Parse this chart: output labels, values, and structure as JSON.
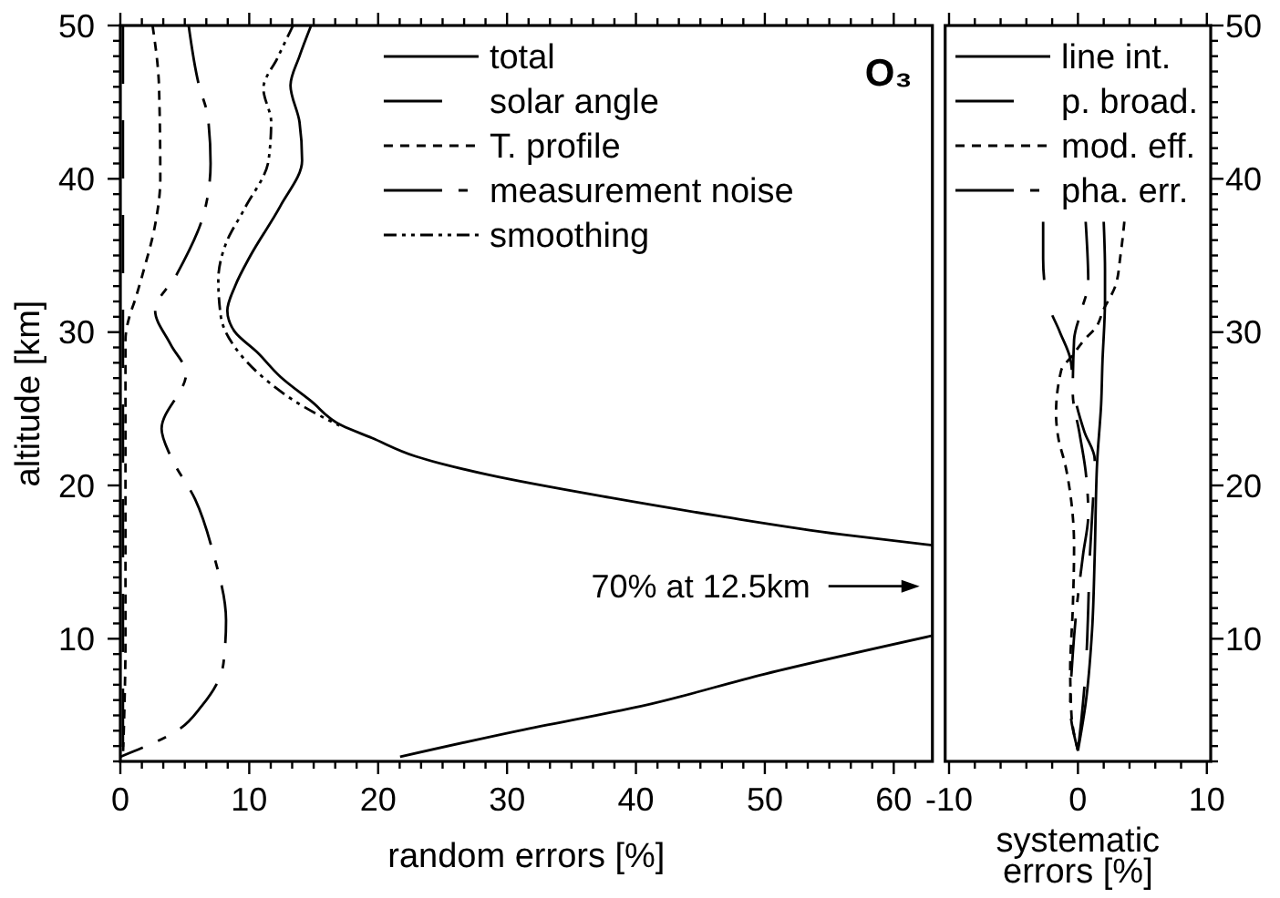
{
  "chart_data": [
    {
      "type": "line",
      "title": "O₃",
      "xlabel": "random errors [%]",
      "ylabel": "altitude [km]",
      "xlim": [
        0,
        63
      ],
      "xticks": [
        0,
        {
          "value": 1.67,
          "label": null
        },
        {
          "value": 3.33,
          "label": null
        },
        {
          "value": 5,
          "label": null
        },
        {
          "value": 6.67,
          "label": null
        },
        {
          "value": 8.33,
          "label": null
        },
        10,
        {
          "value": 11.67,
          "label": null
        },
        {
          "value": 13.33,
          "label": null
        },
        {
          "value": 15,
          "label": null
        },
        {
          "value": 16.67,
          "label": null
        },
        {
          "value": 18.33,
          "label": null
        },
        20,
        {
          "value": 21.67,
          "label": null
        },
        {
          "value": 23.33,
          "label": null
        },
        {
          "value": 25,
          "label": null
        },
        {
          "value": 26.67,
          "label": null
        },
        {
          "value": 28.33,
          "label": null
        },
        30,
        {
          "value": 31.67,
          "label": null
        },
        {
          "value": 33.33,
          "label": null
        },
        {
          "value": 35,
          "label": null
        },
        {
          "value": 36.67,
          "label": null
        },
        {
          "value": 38.33,
          "label": null
        },
        40,
        {
          "value": 41.67,
          "label": null
        },
        {
          "value": 43.33,
          "label": null
        },
        {
          "value": 45,
          "label": null
        },
        {
          "value": 46.67,
          "label": null
        },
        {
          "value": 48.33,
          "label": null
        },
        50,
        {
          "value": 51.67,
          "label": null
        },
        {
          "value": 53.33,
          "label": null
        },
        {
          "value": 55,
          "label": null
        },
        {
          "value": 56.67,
          "label": null
        },
        {
          "value": 58.33,
          "label": null
        },
        60,
        {
          "value": 61.67,
          "label": null
        }
      ],
      "ylim": [
        2,
        50
      ],
      "yticks": [
        {
          "value": 2,
          "label": null
        },
        {
          "value": 3,
          "label": null
        },
        {
          "value": 4,
          "label": null
        },
        {
          "value": 5,
          "label": null
        },
        {
          "value": 6,
          "label": null
        },
        {
          "value": 7,
          "label": null
        },
        {
          "value": 8,
          "label": null
        },
        {
          "value": 9,
          "label": null
        },
        10,
        {
          "value": 11,
          "label": null
        },
        {
          "value": 12,
          "label": null
        },
        {
          "value": 13,
          "label": null
        },
        {
          "value": 14,
          "label": null
        },
        {
          "value": 15,
          "label": null
        },
        {
          "value": 16,
          "label": null
        },
        {
          "value": 17,
          "label": null
        },
        {
          "value": 18,
          "label": null
        },
        {
          "value": 19,
          "label": null
        },
        20,
        {
          "value": 21,
          "label": null
        },
        {
          "value": 22,
          "label": null
        },
        {
          "value": 23,
          "label": null
        },
        {
          "value": 24,
          "label": null
        },
        {
          "value": 25,
          "label": null
        },
        {
          "value": 26,
          "label": null
        },
        {
          "value": 27,
          "label": null
        },
        {
          "value": 28,
          "label": null
        },
        {
          "value": 29,
          "label": null
        },
        30,
        {
          "value": 31,
          "label": null
        },
        {
          "value": 32,
          "label": null
        },
        {
          "value": 33,
          "label": null
        },
        {
          "value": 34,
          "label": null
        },
        {
          "value": 35,
          "label": null
        },
        {
          "value": 36,
          "label": null
        },
        {
          "value": 37,
          "label": null
        },
        {
          "value": 38,
          "label": null
        },
        {
          "value": 39,
          "label": null
        },
        40,
        {
          "value": 41,
          "label": null
        },
        {
          "value": 42,
          "label": null
        },
        {
          "value": 43,
          "label": null
        },
        {
          "value": 44,
          "label": null
        },
        {
          "value": 45,
          "label": null
        },
        {
          "value": 46,
          "label": null
        },
        {
          "value": 47,
          "label": null
        },
        {
          "value": 48,
          "label": null
        },
        {
          "value": 49,
          "label": null
        },
        50
      ],
      "legend": "top right",
      "annotations": [
        "70% at 12.5km"
      ],
      "series": [
        {
          "name": "total",
          "color": "#000000",
          "line_style": "solid",
          "x": [
            14.8,
            13.9,
            13.2,
            13.9,
            14.1,
            12.4,
            10.1,
            8.9,
            8.3,
            8.9,
            10.6,
            12.4,
            14.8,
            17.2,
            19.5,
            22.9,
            28.5,
            38,
            46.5,
            56,
            63,
            null,
            63,
            50,
            40.4,
            30.9,
            21.7
          ],
          "values": [
            50,
            48,
            46.1,
            43.7,
            41.2,
            38.2,
            35,
            33,
            31.4,
            30,
            28.7,
            27.1,
            25.5,
            23.9,
            23.1,
            21.9,
            20.7,
            19.2,
            18,
            16.8,
            16.1,
            null,
            10.2,
            7.7,
            5.6,
            4,
            2.3
          ]
        },
        {
          "name": "solar angle",
          "color": "#000000",
          "line_style": "longdash",
          "x": [
            0.2,
            0.2,
            0.2,
            0.2,
            0.2,
            0.2
          ],
          "values": [
            50,
            40,
            30,
            20,
            10,
            2.3
          ]
        },
        {
          "name": "T. profile",
          "color": "#000000",
          "line_style": "dashed",
          "x": [
            2.5,
            3,
            3.1,
            2.7,
            1.8,
            1.1,
            0.7,
            0.4,
            0.4,
            0.4,
            0.4,
            0.4,
            0.3,
            0.2
          ],
          "values": [
            50,
            46,
            40,
            37,
            34,
            32,
            31,
            29.5,
            25,
            20,
            15,
            10,
            5,
            2.3
          ]
        },
        {
          "name": "measurement noise",
          "color": "#000000",
          "line_style": "dashdot",
          "x": [
            5.3,
            6.1,
            6.8,
            7,
            6.5,
            4.4,
            2.7,
            3.9,
            5.1,
            3.2,
            3.9,
            5.8,
            7.2,
            8.2,
            8,
            6.3,
            4.4,
            0
          ],
          "values": [
            50,
            46.1,
            44,
            41,
            37.8,
            33.8,
            31.4,
            29.2,
            27.3,
            23.7,
            21.9,
            19.1,
            15.6,
            11.2,
            8.4,
            5.6,
            4,
            2.3
          ]
        },
        {
          "name": "smoothing",
          "color": "#000000",
          "line_style": "dashdotdot",
          "x": [
            13.4,
            12.2,
            11.1,
            11.7,
            11.5,
            9.6,
            8.2,
            7.6,
            7.8,
            8.9,
            11,
            14.3,
            17
          ],
          "values": [
            50,
            47.9,
            45.9,
            43.7,
            41.2,
            38,
            35.8,
            33.4,
            31,
            29,
            27.1,
            25.1,
            23.9
          ]
        }
      ]
    },
    {
      "type": "line",
      "xlabel": "systematic errors [%]",
      "xlim": [
        -10.3,
        10.3
      ],
      "xticks": [
        -10,
        {
          "value": -8,
          "label": null
        },
        {
          "value": -6,
          "label": null
        },
        {
          "value": -4,
          "label": null
        },
        {
          "value": -2,
          "label": null
        },
        0,
        {
          "value": 2,
          "label": null
        },
        {
          "value": 4,
          "label": null
        },
        {
          "value": 6,
          "label": null
        },
        {
          "value": 8,
          "label": null
        },
        10
      ],
      "ylim": [
        2,
        50
      ],
      "yticks": [
        {
          "value": 2,
          "label": null
        },
        {
          "value": 3,
          "label": null
        },
        {
          "value": 4,
          "label": null
        },
        {
          "value": 5,
          "label": null
        },
        {
          "value": 6,
          "label": null
        },
        {
          "value": 7,
          "label": null
        },
        {
          "value": 8,
          "label": null
        },
        {
          "value": 9,
          "label": null
        },
        10,
        {
          "value": 11,
          "label": null
        },
        {
          "value": 12,
          "label": null
        },
        {
          "value": 13,
          "label": null
        },
        {
          "value": 14,
          "label": null
        },
        {
          "value": 15,
          "label": null
        },
        {
          "value": 16,
          "label": null
        },
        {
          "value": 17,
          "label": null
        },
        {
          "value": 18,
          "label": null
        },
        {
          "value": 19,
          "label": null
        },
        20,
        {
          "value": 21,
          "label": null
        },
        {
          "value": 22,
          "label": null
        },
        {
          "value": 23,
          "label": null
        },
        {
          "value": 24,
          "label": null
        },
        {
          "value": 25,
          "label": null
        },
        {
          "value": 26,
          "label": null
        },
        {
          "value": 27,
          "label": null
        },
        {
          "value": 28,
          "label": null
        },
        {
          "value": 29,
          "label": null
        },
        30,
        {
          "value": 31,
          "label": null
        },
        {
          "value": 32,
          "label": null
        },
        {
          "value": 33,
          "label": null
        },
        {
          "value": 34,
          "label": null
        },
        {
          "value": 35,
          "label": null
        },
        {
          "value": 36,
          "label": null
        },
        {
          "value": 37,
          "label": null
        },
        {
          "value": 38,
          "label": null
        },
        {
          "value": 39,
          "label": null
        },
        40,
        {
          "value": 41,
          "label": null
        },
        {
          "value": 42,
          "label": null
        },
        {
          "value": 43,
          "label": null
        },
        {
          "value": 44,
          "label": null
        },
        {
          "value": 45,
          "label": null
        },
        {
          "value": 46,
          "label": null
        },
        {
          "value": 47,
          "label": null
        },
        {
          "value": 48,
          "label": null
        },
        {
          "value": 49,
          "label": null
        },
        50
      ],
      "legend": "top right",
      "series": [
        {
          "name": "line int.",
          "color": "#000000",
          "line_style": "solid",
          "x": [
            2,
            2.1,
            2.1,
            1.9,
            1.8,
            1.5,
            1.3,
            1.1,
            0.6,
            0
          ],
          "values": [
            37.2,
            34,
            32.1,
            28,
            25.3,
            21.7,
            15.4,
            10.6,
            5.8,
            2.7
          ]
        },
        {
          "name": "p. broad.",
          "color": "#000000",
          "line_style": "longdash",
          "x": [
            -2.7,
            -2.7,
            -2.4,
            -1.4,
            -0.6,
            -0.3,
            0.5,
            1.3,
            1.1,
            0.9,
            0.8,
            0.6,
            0.3,
            0
          ],
          "values": [
            37.2,
            34.8,
            32.1,
            30,
            28.3,
            26,
            23.5,
            21.7,
            18,
            15,
            12,
            8,
            5,
            2.7
          ]
        },
        {
          "name": "mod. eff.",
          "color": "#000000",
          "line_style": "dashed",
          "x": [
            3.6,
            3.3,
            2.9,
            2,
            1.3,
            0.6,
            -0.4,
            -1.3,
            -1.7,
            -1.5,
            -1,
            -0.6,
            -0.3,
            -0.4,
            -0.6,
            -0.5,
            0
          ],
          "values": [
            37.2,
            35,
            33,
            31.5,
            30.2,
            29.6,
            28.5,
            27.5,
            24.7,
            23,
            21.4,
            19.5,
            16,
            12,
            8,
            5,
            2.7
          ]
        },
        {
          "name": "pha. err.",
          "color": "#000000",
          "line_style": "dashdot",
          "x": [
            0.6,
            0.8,
            0.3,
            -0.3,
            -0.4,
            0.1,
            0.6,
            0.8,
            0.4,
            -0.1,
            -0.4,
            -0.6,
            0
          ],
          "values": [
            37.2,
            33.2,
            31.5,
            29.5,
            26,
            23.5,
            20.9,
            18.1,
            15.5,
            12,
            9,
            5.6,
            2.7
          ]
        }
      ]
    }
  ]
}
